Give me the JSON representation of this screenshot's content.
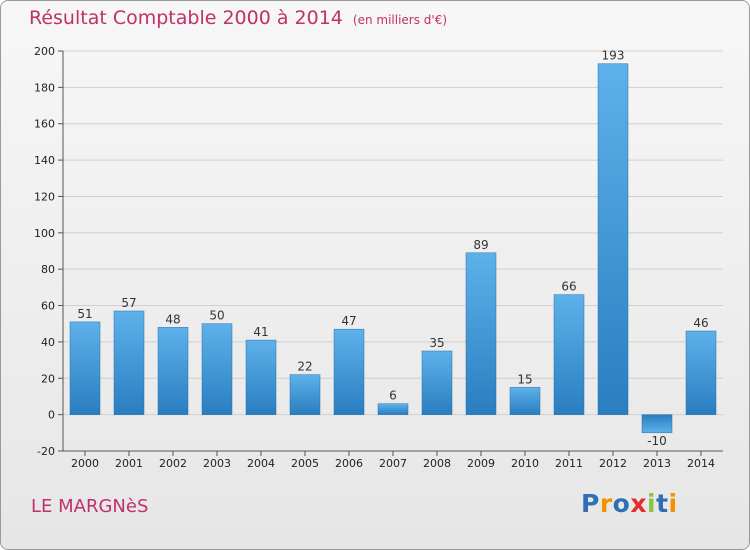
{
  "title": "Résultat Comptable 2000 à 2014",
  "subtitle": "(en milliers d'€)",
  "commune": "LE MARGNèS",
  "logo": {
    "text": "Proxiti",
    "letters": [
      {
        "char": "P",
        "color": "#2f6fb3"
      },
      {
        "char": "r",
        "color": "#f39200"
      },
      {
        "char": "o",
        "color": "#2f6fb3"
      },
      {
        "char": "x",
        "color": "#e62b2b"
      },
      {
        "char": "i",
        "color": "#8cc63f"
      },
      {
        "char": "t",
        "color": "#2f6fb3"
      },
      {
        "char": "i",
        "color": "#f39200"
      }
    ]
  },
  "colors": {
    "title": "#c0306a",
    "bar_light": "#5eb1ea",
    "bar_dark": "#2a7ec0",
    "grid": "#d0d0d0"
  },
  "chart_data": {
    "type": "bar",
    "title": "Résultat Comptable 2000 à 2014",
    "subtitle": "(en milliers d'€)",
    "categories": [
      "2000",
      "2001",
      "2002",
      "2003",
      "2004",
      "2005",
      "2006",
      "2007",
      "2008",
      "2009",
      "2010",
      "2011",
      "2012",
      "2013",
      "2014"
    ],
    "values": [
      51,
      57,
      48,
      50,
      41,
      22,
      47,
      6,
      35,
      89,
      15,
      66,
      193,
      -10,
      46
    ],
    "value_labels": [
      "51",
      "57",
      "48",
      "50",
      "41",
      "22",
      "47",
      "6",
      "35",
      "89",
      "15",
      "66",
      "193",
      "-10",
      "46"
    ],
    "ylim": [
      -20,
      200
    ],
    "yticks": [
      -20,
      0,
      20,
      40,
      60,
      80,
      100,
      120,
      140,
      160,
      180,
      200
    ],
    "xlabel": "",
    "ylabel": "",
    "grid": true,
    "legend": "none"
  }
}
